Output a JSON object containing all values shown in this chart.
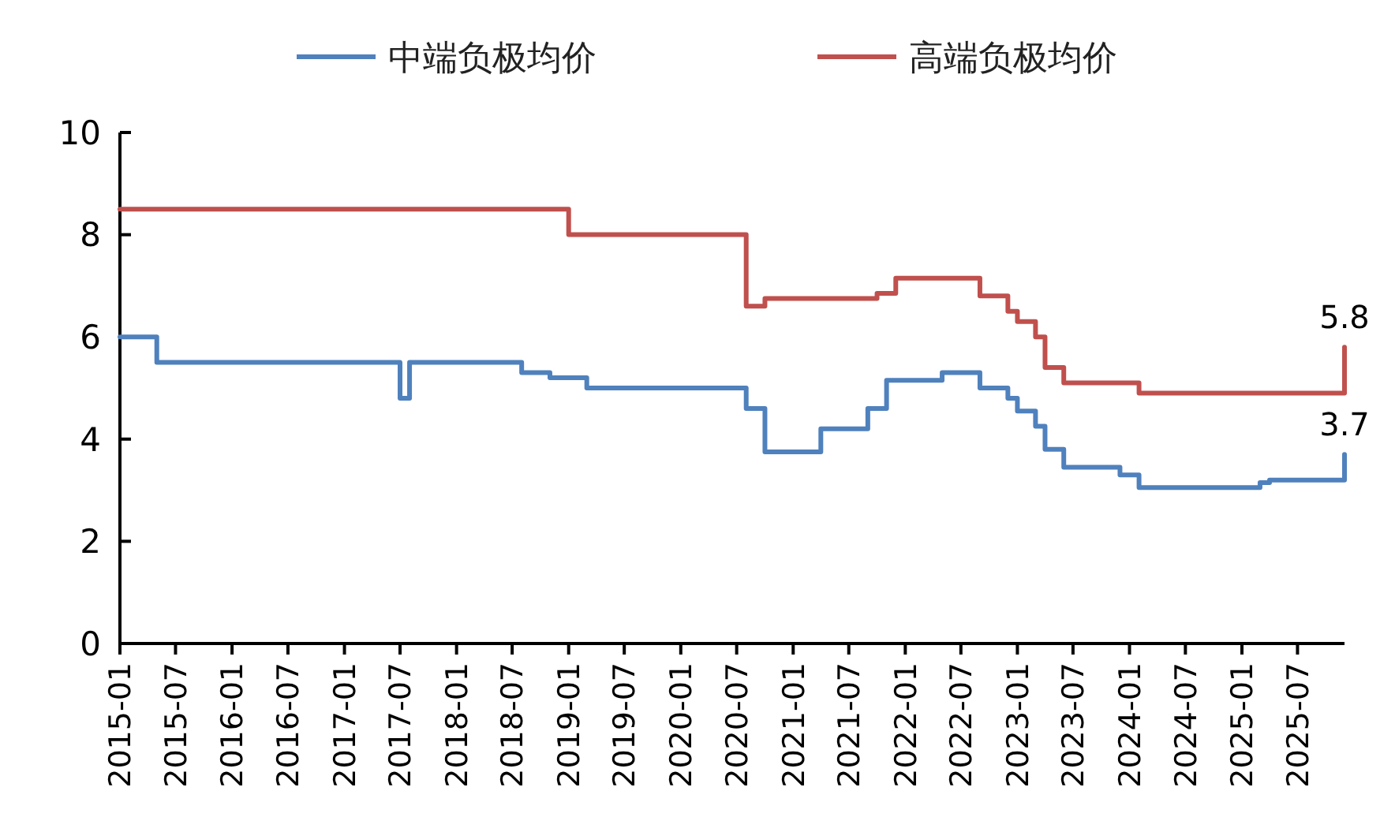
{
  "chart_data": {
    "type": "step",
    "legend": "top",
    "marker": "none",
    "line_style": "solid",
    "grid": false,
    "xlim": [
      "2015-01",
      "2025-12"
    ],
    "xticks": [
      "2015-01",
      "2015-07",
      "2016-01",
      "2016-07",
      "2017-01",
      "2017-07",
      "2018-01",
      "2018-07",
      "2019-01",
      "2019-07",
      "2020-01",
      "2020-07",
      "2021-01",
      "2021-07",
      "2022-01",
      "2022-07",
      "2023-01",
      "2023-07",
      "2024-01",
      "2024-07",
      "2025-01",
      "2025-07"
    ],
    "ylim": [
      0,
      10
    ],
    "yticks": [
      0,
      2,
      4,
      6,
      8,
      10
    ],
    "series": [
      {
        "name": "中端负极均价",
        "color": "#4f81bd",
        "x": [
          "2015-01",
          "2015-05",
          "2017-06",
          "2017-07",
          "2017-08",
          "2018-08",
          "2018-11",
          "2019-03",
          "2020-08",
          "2020-10",
          "2021-04",
          "2021-09",
          "2021-11",
          "2022-05",
          "2022-09",
          "2022-12",
          "2023-01",
          "2023-03",
          "2023-04",
          "2023-06",
          "2023-12",
          "2024-02",
          "2025-03",
          "2025-04",
          "2025-12"
        ],
        "values": [
          6.0,
          5.5,
          5.5,
          4.8,
          5.5,
          5.3,
          5.2,
          5.0,
          4.6,
          3.75,
          4.2,
          4.6,
          5.15,
          5.3,
          5.0,
          4.8,
          4.55,
          4.25,
          3.8,
          3.45,
          3.3,
          3.05,
          3.15,
          3.2,
          3.7
        ],
        "value_labels": [
          null,
          null,
          null,
          null,
          null,
          null,
          null,
          null,
          null,
          null,
          null,
          null,
          null,
          null,
          null,
          null,
          null,
          null,
          null,
          null,
          null,
          null,
          null,
          null,
          "3.7"
        ]
      },
      {
        "name": "高端负极均价",
        "color": "#c0504d",
        "x": [
          "2015-01",
          "2019-01",
          "2020-08",
          "2020-10",
          "2021-10",
          "2021-12",
          "2022-09",
          "2022-12",
          "2023-01",
          "2023-03",
          "2023-04",
          "2023-06",
          "2024-02",
          "2025-12"
        ],
        "values": [
          8.5,
          8.0,
          6.6,
          6.75,
          6.85,
          7.15,
          6.8,
          6.5,
          6.3,
          6.0,
          5.4,
          5.1,
          4.9,
          5.8
        ],
        "value_labels": [
          null,
          null,
          null,
          null,
          null,
          null,
          null,
          null,
          null,
          null,
          null,
          null,
          null,
          "5.8"
        ]
      }
    ]
  }
}
